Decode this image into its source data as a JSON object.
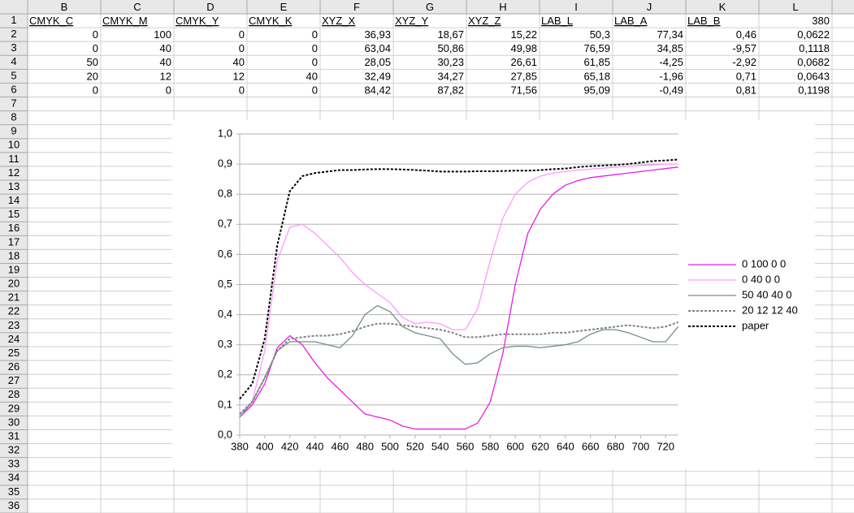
{
  "sheet": {
    "columns": [
      "B",
      "C",
      "D",
      "E",
      "F",
      "G",
      "H",
      "I",
      "J",
      "K",
      "L"
    ],
    "row_numbers": [
      1,
      2,
      3,
      4,
      5,
      6,
      7,
      8,
      9,
      10,
      11,
      12,
      13,
      14,
      15,
      16,
      17,
      18,
      19,
      20,
      21,
      22,
      23,
      24,
      25,
      26,
      27,
      28,
      29,
      30,
      31,
      32,
      33,
      34,
      35,
      36
    ],
    "cells": [
      [
        "CMYK_C",
        "CMYK_M",
        "CMYK_Y",
        "CMYK_K",
        "XYZ_X",
        "XYZ_Y",
        "XYZ_Z",
        "LAB_L",
        "LAB_A",
        "LAB_B",
        "380"
      ],
      [
        "0",
        "100",
        "0",
        "0",
        "36,93",
        "18,67",
        "15,22",
        "50,3",
        "77,34",
        "0,46",
        "0,0622"
      ],
      [
        "0",
        "40",
        "0",
        "0",
        "63,04",
        "50,86",
        "49,98",
        "76,59",
        "34,85",
        "-9,57",
        "0,1118"
      ],
      [
        "50",
        "40",
        "40",
        "0",
        "28,05",
        "30,23",
        "26,61",
        "61,85",
        "-4,25",
        "-2,92",
        "0,0682"
      ],
      [
        "20",
        "12",
        "12",
        "40",
        "32,49",
        "34,27",
        "27,85",
        "65,18",
        "-1,96",
        "0,71",
        "0,0643"
      ],
      [
        "0",
        "0",
        "0",
        "0",
        "84,42",
        "87,82",
        "71,56",
        "95,09",
        "-0,49",
        "0,81",
        "0,1198"
      ]
    ]
  },
  "chart_data": {
    "type": "line",
    "x": [
      380,
      390,
      400,
      410,
      420,
      430,
      440,
      450,
      460,
      470,
      480,
      490,
      500,
      510,
      520,
      530,
      540,
      550,
      560,
      570,
      580,
      590,
      600,
      610,
      620,
      630,
      640,
      650,
      660,
      670,
      680,
      690,
      700,
      710,
      720,
      730
    ],
    "series": [
      {
        "name": "0 100 0 0",
        "color": "#e81ee8",
        "dashed": false,
        "values": [
          0.06,
          0.1,
          0.17,
          0.29,
          0.33,
          0.3,
          0.24,
          0.19,
          0.15,
          0.11,
          0.07,
          0.06,
          0.05,
          0.03,
          0.02,
          0.02,
          0.02,
          0.02,
          0.02,
          0.04,
          0.11,
          0.27,
          0.5,
          0.67,
          0.75,
          0.8,
          0.83,
          0.845,
          0.855,
          0.86,
          0.865,
          0.87,
          0.875,
          0.88,
          0.885,
          0.89
        ]
      },
      {
        "name": "0 40 0 0",
        "color": "#ff99ff",
        "dashed": false,
        "values": [
          0.07,
          0.11,
          0.28,
          0.58,
          0.69,
          0.7,
          0.67,
          0.63,
          0.59,
          0.54,
          0.5,
          0.47,
          0.44,
          0.39,
          0.37,
          0.375,
          0.37,
          0.35,
          0.35,
          0.42,
          0.58,
          0.72,
          0.8,
          0.84,
          0.86,
          0.87,
          0.875,
          0.88,
          0.883,
          0.886,
          0.89,
          0.892,
          0.895,
          0.897,
          0.9,
          0.9
        ]
      },
      {
        "name": "50 40 40 0",
        "color": "#728f82",
        "dashed": false,
        "values": [
          0.06,
          0.11,
          0.19,
          0.28,
          0.31,
          0.31,
          0.31,
          0.3,
          0.29,
          0.33,
          0.4,
          0.43,
          0.41,
          0.36,
          0.34,
          0.33,
          0.32,
          0.27,
          0.235,
          0.24,
          0.27,
          0.29,
          0.295,
          0.295,
          0.29,
          0.295,
          0.3,
          0.31,
          0.335,
          0.35,
          0.35,
          0.34,
          0.325,
          0.31,
          0.31,
          0.36
        ]
      },
      {
        "name": "20 12 12 40",
        "color": "#808080",
        "dashed": true,
        "values": [
          0.07,
          0.11,
          0.19,
          0.28,
          0.32,
          0.325,
          0.33,
          0.33,
          0.335,
          0.345,
          0.36,
          0.37,
          0.37,
          0.365,
          0.36,
          0.355,
          0.35,
          0.34,
          0.325,
          0.325,
          0.33,
          0.335,
          0.335,
          0.335,
          0.335,
          0.34,
          0.34,
          0.345,
          0.35,
          0.355,
          0.36,
          0.365,
          0.36,
          0.355,
          0.36,
          0.375
        ]
      },
      {
        "name": "paper",
        "color": "#000000",
        "dashed": true,
        "values": [
          0.12,
          0.17,
          0.32,
          0.63,
          0.81,
          0.86,
          0.87,
          0.875,
          0.88,
          0.88,
          0.882,
          0.883,
          0.883,
          0.882,
          0.88,
          0.878,
          0.875,
          0.875,
          0.875,
          0.876,
          0.876,
          0.877,
          0.878,
          0.878,
          0.88,
          0.883,
          0.885,
          0.89,
          0.893,
          0.895,
          0.897,
          0.9,
          0.905,
          0.91,
          0.912,
          0.915
        ]
      }
    ],
    "xlim": [
      380,
      730
    ],
    "xticks": [
      380,
      400,
      420,
      440,
      460,
      480,
      500,
      520,
      540,
      560,
      580,
      600,
      620,
      640,
      660,
      680,
      700,
      720
    ],
    "ylim": [
      0,
      1
    ],
    "yticks": [
      {
        "value": 0,
        "label": "0,0"
      },
      {
        "value": 0.1,
        "label": "0,1"
      },
      {
        "value": 0.2,
        "label": "0,2"
      },
      {
        "value": 0.3,
        "label": "0,3"
      },
      {
        "value": 0.4,
        "label": "0,4"
      },
      {
        "value": 0.5,
        "label": "0,5"
      },
      {
        "value": 0.6,
        "label": "0,6"
      },
      {
        "value": 0.7,
        "label": "0,7"
      },
      {
        "value": 0.8,
        "label": "0,8"
      },
      {
        "value": 0.9,
        "label": "0,9"
      },
      {
        "value": 1,
        "label": "1,0"
      }
    ],
    "grid": true,
    "legend": "right"
  }
}
